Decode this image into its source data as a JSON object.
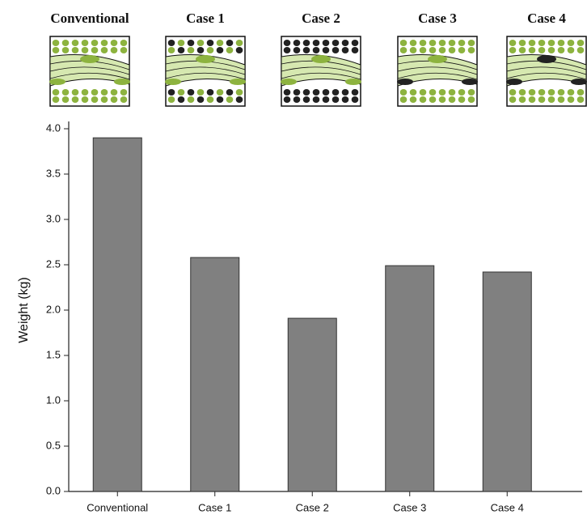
{
  "chart_data": {
    "type": "bar",
    "categories": [
      "Conventional",
      "Case 1",
      "Case 2",
      "Case 3",
      "Case 4"
    ],
    "values": [
      3.9,
      2.58,
      1.91,
      2.49,
      2.42
    ],
    "color": "#808080",
    "y_label": "Weight (kg)",
    "ylim": [
      0,
      4.0
    ],
    "yticks": [
      {
        "value": 0,
        "label": "0.0"
      },
      0.5,
      {
        "value": 1,
        "label": "1.0"
      },
      1.5,
      {
        "value": 2,
        "label": "2.0"
      },
      2.5,
      {
        "value": 3,
        "label": "3.0"
      },
      3.5,
      {
        "value": 4,
        "label": "4.0"
      }
    ],
    "grid": false
  }
}
